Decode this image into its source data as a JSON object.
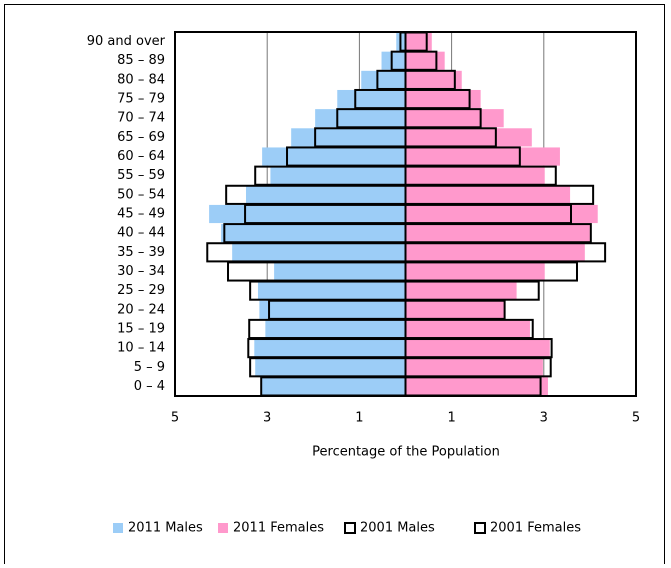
{
  "chart_data": {
    "type": "pyramid",
    "xlabel": "Percentage of the Population",
    "categories": [
      "90 and over",
      "85 – 89",
      "80 – 84",
      "75 – 79",
      "70 – 74",
      "65 – 69",
      "60 – 64",
      "55 – 59",
      "50 – 54",
      "45 – 49",
      "40 – 44",
      "35 – 39",
      "30 – 34",
      "25 – 29",
      "20 – 24",
      "15 – 19",
      "10 – 14",
      "5 – 9",
      "0 – 4"
    ],
    "series": [
      {
        "name": "2011 Males",
        "color": "#9ccdf7",
        "side": "left",
        "fill": true,
        "values": [
          0.2,
          0.52,
          0.96,
          1.48,
          1.96,
          2.48,
          3.11,
          2.93,
          3.46,
          4.26,
          4.0,
          3.76,
          2.85,
          3.2,
          3.17,
          3.04,
          3.28,
          3.26,
          3.13
        ]
      },
      {
        "name": "2011 Females",
        "color": "#ff99cc",
        "side": "right",
        "fill": true,
        "values": [
          0.57,
          0.85,
          1.22,
          1.63,
          2.13,
          2.74,
          3.35,
          3.02,
          3.57,
          4.17,
          4.0,
          3.89,
          3.02,
          2.41,
          2.15,
          2.7,
          3.13,
          2.98,
          3.09
        ]
      },
      {
        "name": "2001 Males",
        "color": "#000000",
        "side": "left",
        "fill": false,
        "values": [
          0.11,
          0.3,
          0.61,
          1.09,
          1.48,
          1.96,
          2.57,
          3.26,
          3.89,
          3.48,
          3.93,
          4.3,
          3.85,
          3.37,
          2.96,
          3.39,
          3.41,
          3.37,
          3.13
        ]
      },
      {
        "name": "2001 Females",
        "color": "#000000",
        "side": "right",
        "fill": false,
        "values": [
          0.46,
          0.67,
          1.07,
          1.39,
          1.63,
          1.96,
          2.48,
          3.26,
          4.07,
          3.59,
          4.02,
          4.33,
          3.72,
          2.89,
          2.15,
          2.76,
          3.17,
          3.15,
          2.93
        ]
      }
    ],
    "xlim": [
      -5,
      5
    ],
    "xticks": [
      {
        "value": -5,
        "label": "5"
      },
      {
        "value": -3,
        "label": "3"
      },
      {
        "value": -1,
        "label": "1"
      },
      1,
      3,
      5
    ],
    "grid": true,
    "legend": "bottom"
  }
}
